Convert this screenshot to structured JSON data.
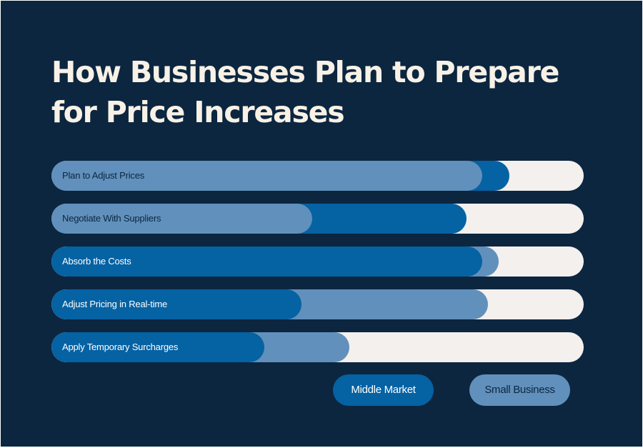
{
  "title_line1": "How Businesses Plan to Prepare",
  "title_line2": "for Price Increases",
  "colors": {
    "background": "#0c2640",
    "middle_market": "#0562a3",
    "small_business": "#6190bc",
    "track": "#f3f0ee",
    "title": "#f7f1e6"
  },
  "chart_data": {
    "type": "bar",
    "orientation": "horizontal",
    "title": "How Businesses Plan to Prepare for Price Increases",
    "xlim": [
      0,
      100
    ],
    "grid": false,
    "legend_placement": "bottom-right",
    "categories": [
      "Plan to Adjust Prices",
      "Negotiate With Suppliers",
      "Absorb the Costs",
      "Adjust Pricing in Real-time",
      "Apply Temporary Surcharges"
    ],
    "series": [
      {
        "name": "Middle Market",
        "color": "#0562a3",
        "values": [
          86,
          78,
          81,
          47,
          40
        ]
      },
      {
        "name": "Small Business",
        "color": "#6190bc",
        "values": [
          81,
          49,
          84,
          82,
          56
        ]
      }
    ]
  },
  "legend": {
    "middle_market": "Middle Market",
    "small_business": "Small Business"
  }
}
